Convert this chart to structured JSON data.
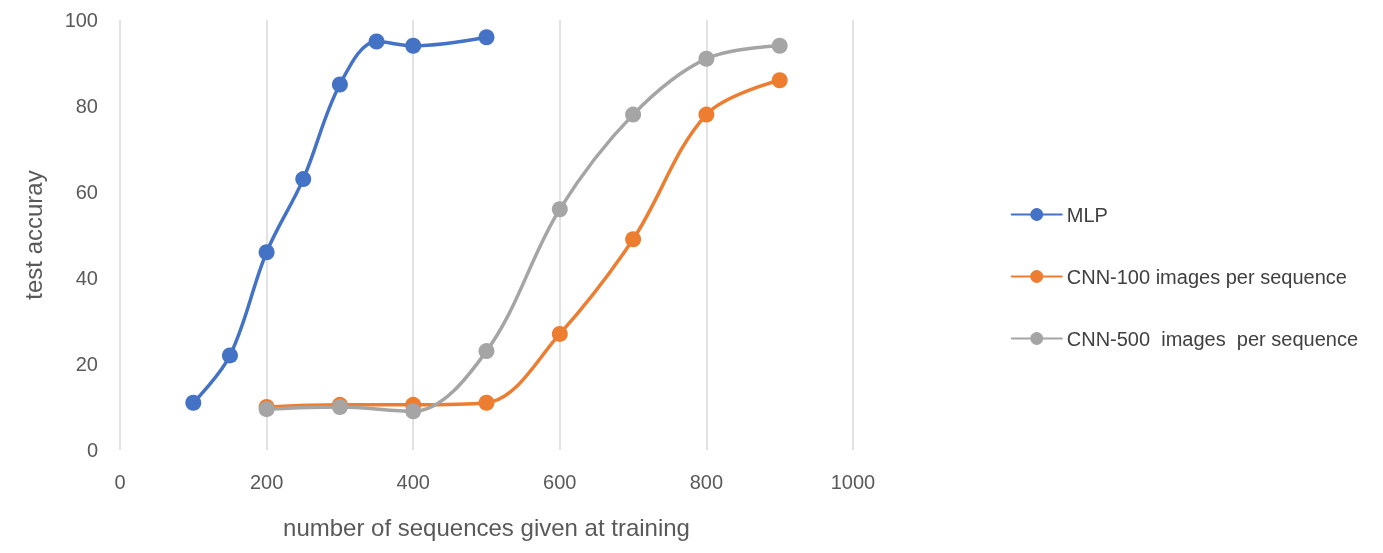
{
  "chart_data": {
    "type": "line",
    "xlabel": "number of sequences given at training",
    "ylabel": "test accuray",
    "xlim": [
      0,
      1000
    ],
    "xticks": [
      0,
      200,
      400,
      600,
      800,
      1000
    ],
    "ylim": [
      0,
      100
    ],
    "yticks": [
      0,
      20,
      40,
      60,
      80,
      100
    ],
    "grid": "x",
    "legend": "right",
    "marker": "circle",
    "line_style": "solid",
    "series": [
      {
        "name": "MLP",
        "color": "#4472c4",
        "x": [
          100,
          150,
          200,
          250,
          300,
          350,
          400,
          500
        ],
        "values": [
          11,
          22,
          46,
          63,
          85,
          95,
          94,
          96
        ]
      },
      {
        "name": "CNN-100 images per sequence",
        "color": "#ed7d31",
        "x": [
          200,
          300,
          400,
          500,
          600,
          700,
          800,
          900
        ],
        "values": [
          10,
          10.5,
          10.5,
          11,
          27,
          49,
          78,
          86
        ]
      },
      {
        "name": "CNN-500  images  per sequence",
        "color": "#a5a5a5",
        "x": [
          200,
          300,
          400,
          500,
          600,
          700,
          800,
          900
        ],
        "values": [
          9.5,
          10,
          9,
          23,
          56,
          78,
          91,
          94
        ]
      }
    ]
  }
}
